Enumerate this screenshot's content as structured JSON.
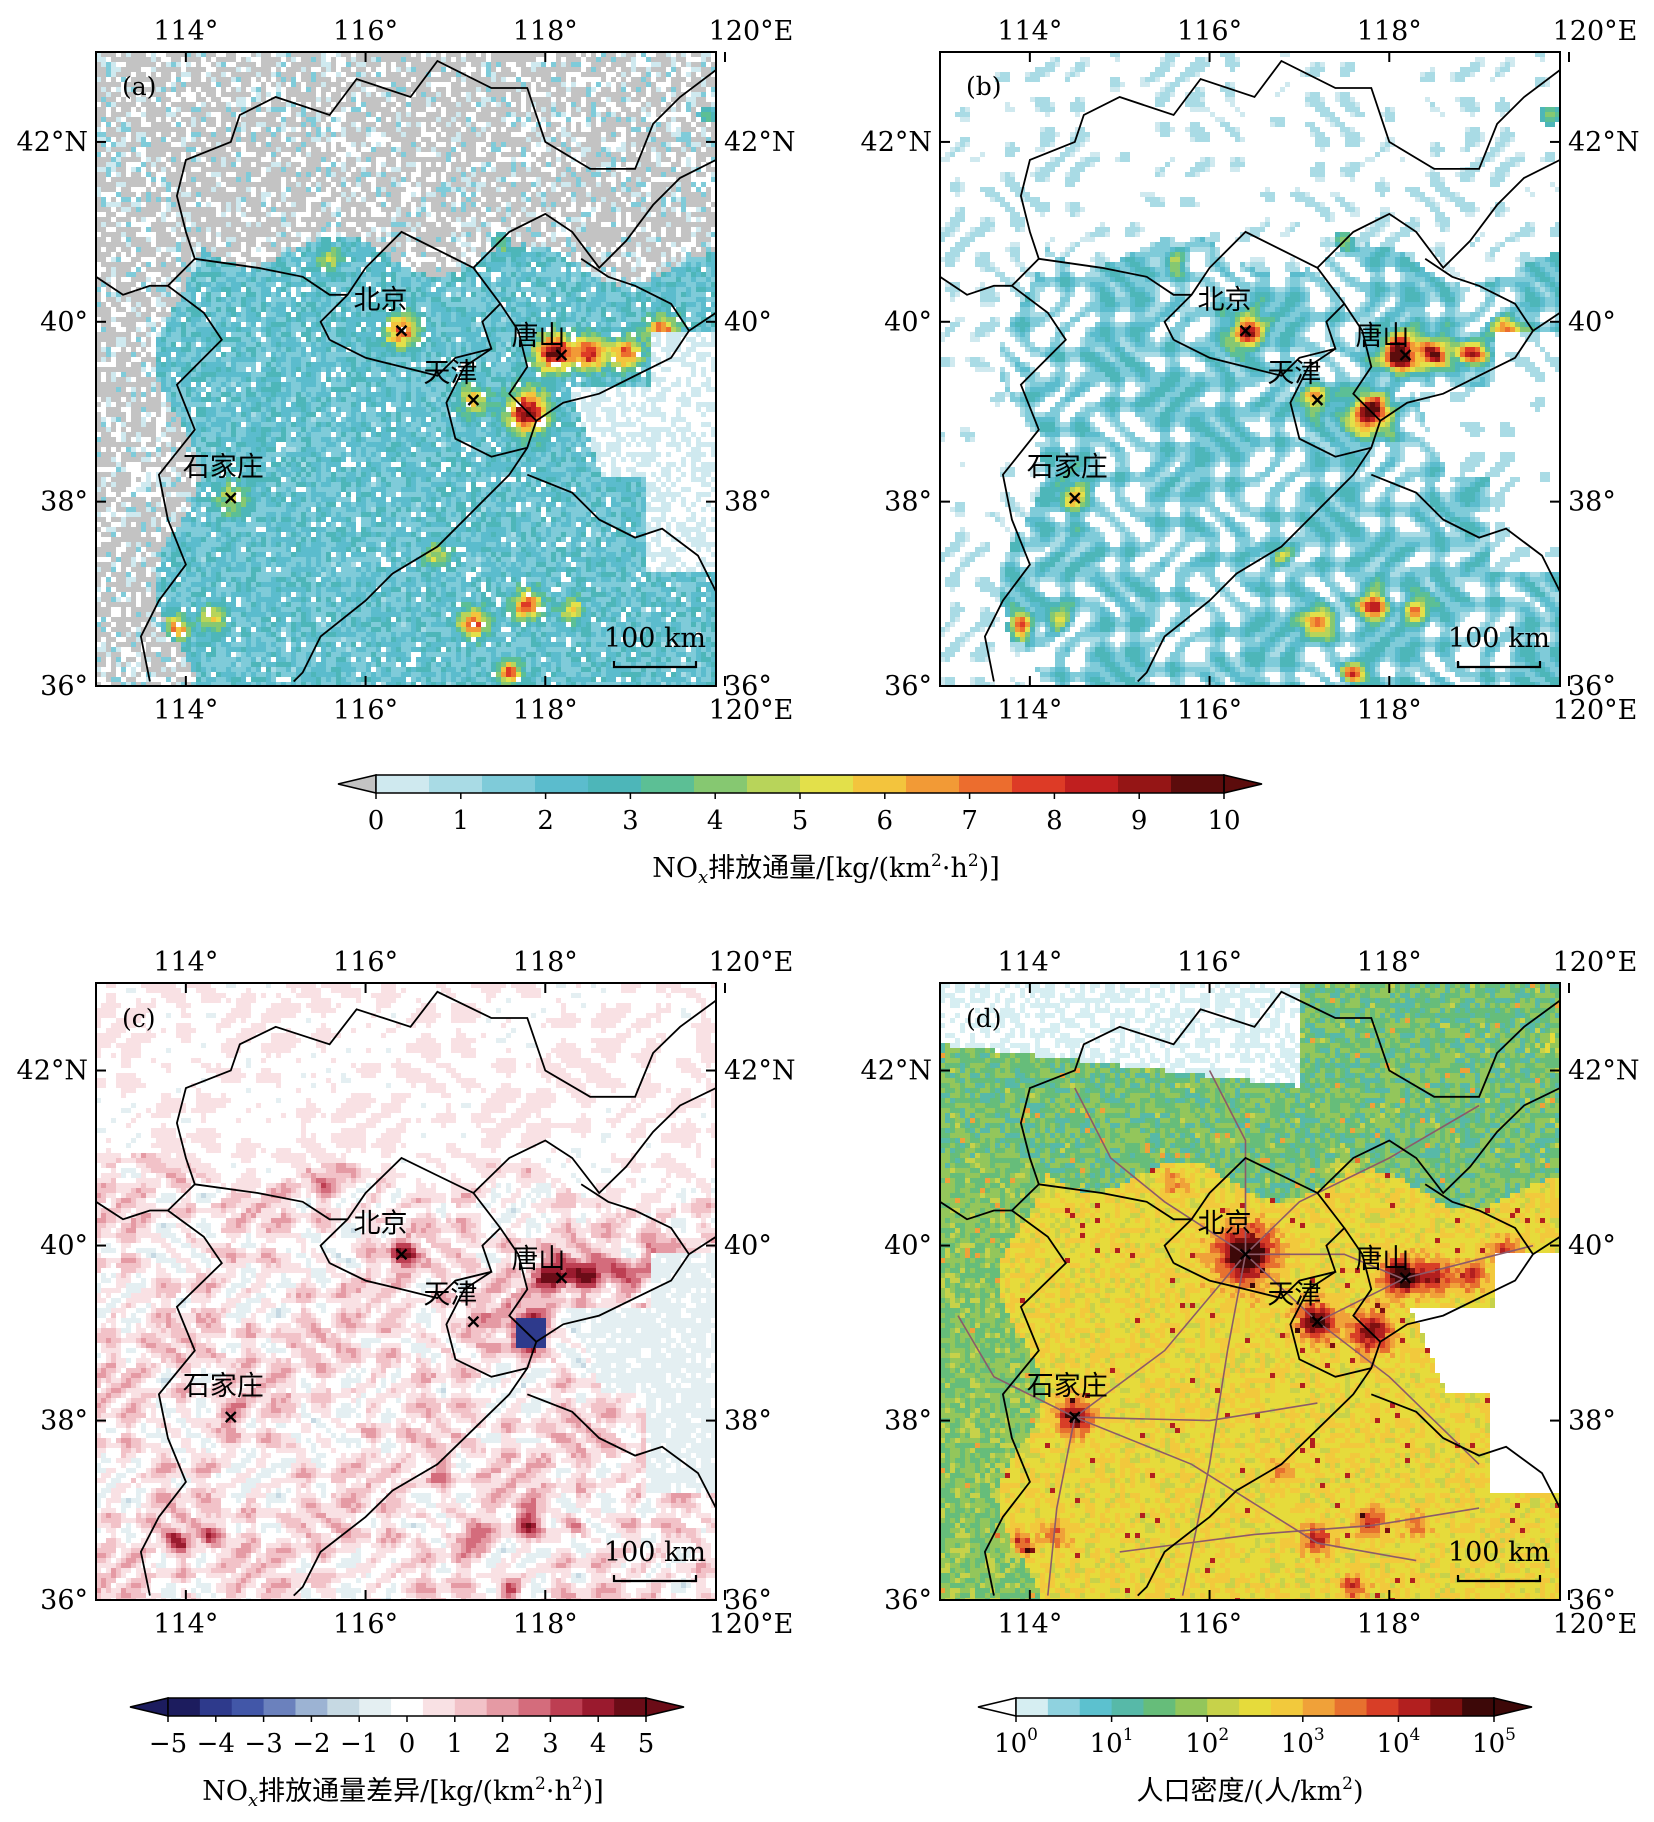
{
  "figure": {
    "lon_ticks": [
      "114°",
      "116°",
      "118°",
      "120°E"
    ],
    "lat_ticks": [
      "42°N",
      "40°",
      "38°",
      "36°"
    ],
    "scale_bar_label": "100 km",
    "cities": [
      {
        "name": "北京",
        "lon": 116.4,
        "lat": 39.9
      },
      {
        "name": "唐山",
        "lon": 118.18,
        "lat": 39.63
      },
      {
        "name": "天津",
        "lon": 117.2,
        "lat": 39.13
      },
      {
        "name": "石家庄",
        "lon": 114.5,
        "lat": 38.04
      }
    ]
  },
  "panels": [
    {
      "label": "(a)",
      "field": "emission"
    },
    {
      "label": "(b)",
      "field": "emission"
    },
    {
      "label": "(c)",
      "field": "difference"
    },
    {
      "label": "(d)",
      "field": "population"
    }
  ],
  "colorbars": {
    "emission": {
      "ticks": [
        "0",
        "1",
        "2",
        "3",
        "4",
        "5",
        "6",
        "7",
        "8",
        "9",
        "10"
      ],
      "title_prefix": "NO",
      "title_sub": "x",
      "title_rest": "排放通量/[kg/(km",
      "title_sup1": "2",
      "title_mid": "·h",
      "title_sup2": "2",
      "title_end": ")]"
    },
    "difference": {
      "ticks": [
        "−5",
        "−4",
        "−3",
        "−2",
        "−1",
        "0",
        "1",
        "2",
        "3",
        "4",
        "5"
      ],
      "title_prefix": "NO",
      "title_sub": "x",
      "title_rest": "排放通量差异/[kg/(km",
      "title_sup1": "2",
      "title_mid": "·h",
      "title_sup2": "2",
      "title_end": ")]"
    },
    "population": {
      "tick_bases": [
        "10",
        "10",
        "10",
        "10",
        "10",
        "10"
      ],
      "tick_exps": [
        "0",
        "1",
        "2",
        "3",
        "4",
        "5"
      ],
      "title_main": "人口密度/(人/km",
      "title_sup": "2",
      "title_end": ")"
    }
  },
  "colors": {
    "emission_scale": [
      "#ffffff",
      "#cfe9ef",
      "#a9dbe5",
      "#7fcbd9",
      "#5bbccd",
      "#4db6b9",
      "#5cbf95",
      "#86c871",
      "#b8d45a",
      "#e3e04a",
      "#f3c43d",
      "#f29a36",
      "#ec6d2e",
      "#dd3b26",
      "#c01f1f",
      "#951515",
      "#5c0c0c"
    ],
    "difference_scale": [
      "#1c1c5e",
      "#2e3a8c",
      "#4257a8",
      "#6b81bd",
      "#9cb3d3",
      "#c6d9e3",
      "#e4eff2",
      "#ffffff",
      "#f9e1e4",
      "#f2c2c8",
      "#e59aa4",
      "#d46c7c",
      "#bd3e52",
      "#9a1a2e",
      "#6b0c17"
    ],
    "population_scale": [
      "#ffffff",
      "#d6eef2",
      "#8fd2df",
      "#5cc1cf",
      "#57b9a8",
      "#66bd7a",
      "#93c65b",
      "#c7d24a",
      "#e6db3b",
      "#f2c93c",
      "#f0a139",
      "#e7712f",
      "#d83e27",
      "#b21f1f",
      "#7e1010",
      "#3d0808"
    ],
    "no_data": "#c3c3c3",
    "boundary": "#000000",
    "road": "#8c5a6a"
  }
}
